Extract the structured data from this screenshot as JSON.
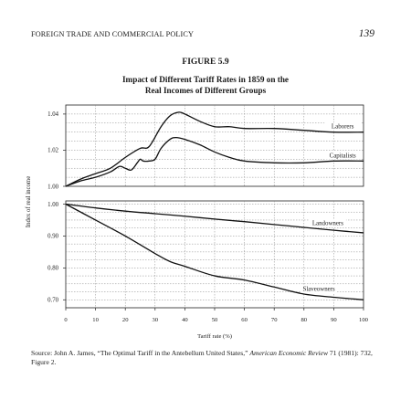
{
  "page": {
    "running_head": "FOREIGN TRADE AND COMMERCIAL POLICY",
    "page_number": "139",
    "figure_label": "FIGURE 5.9",
    "figure_title_line1": "Impact of Different Tariff Rates in 1859 on the",
    "figure_title_line2": "Real Incomes of Different Groups",
    "source_prefix": "Source: John A. James, “The Optimal Tariff in the Antebellum United States,” ",
    "source_journal": "American Economic Review",
    "source_suffix": " 71 (1981): 732, Figure 2."
  },
  "chart_data": [
    {
      "type": "line",
      "panel": "upper",
      "ylabel": "Index of real income",
      "xlim": [
        0,
        100
      ],
      "ylim": [
        1.0,
        1.045
      ],
      "yticks": [
        "1.00",
        "1.02",
        "1.04"
      ],
      "grid": true,
      "series": [
        {
          "name": "Laborers",
          "x": [
            0,
            5,
            10,
            15,
            20,
            25,
            28,
            32,
            35,
            38,
            40,
            45,
            50,
            55,
            60,
            70,
            80,
            90,
            100
          ],
          "y": [
            1.0,
            1.004,
            1.007,
            1.01,
            1.016,
            1.021,
            1.022,
            1.033,
            1.039,
            1.041,
            1.04,
            1.036,
            1.033,
            1.033,
            1.032,
            1.032,
            1.031,
            1.03,
            1.03
          ]
        },
        {
          "name": "Capitalists",
          "x": [
            0,
            5,
            10,
            15,
            18,
            20,
            22,
            24,
            25,
            26,
            28,
            30,
            32,
            35,
            37,
            40,
            45,
            50,
            55,
            60,
            70,
            80,
            90,
            100
          ],
          "y": [
            1.0,
            1.003,
            1.005,
            1.008,
            1.011,
            1.01,
            1.009,
            1.013,
            1.015,
            1.014,
            1.014,
            1.015,
            1.021,
            1.026,
            1.027,
            1.026,
            1.023,
            1.019,
            1.016,
            1.014,
            1.013,
            1.013,
            1.014,
            1.014
          ]
        }
      ]
    },
    {
      "type": "line",
      "panel": "lower",
      "xlabel": "Tariff rate (%)",
      "xlim": [
        0,
        100
      ],
      "xticks": [
        "0",
        "10",
        "20",
        "30",
        "40",
        "50",
        "60",
        "70",
        "80",
        "90",
        "100"
      ],
      "ylim": [
        0.675,
        1.01
      ],
      "yticks": [
        "0.70",
        "0.80",
        "0.90",
        "1.00"
      ],
      "grid": true,
      "series": [
        {
          "name": "Landowners",
          "x": [
            0,
            10,
            20,
            30,
            40,
            50,
            60,
            70,
            80,
            90,
            100
          ],
          "y": [
            1.0,
            0.988,
            0.978,
            0.97,
            0.962,
            0.953,
            0.945,
            0.936,
            0.927,
            0.918,
            0.91
          ]
        },
        {
          "name": "Slaveowners",
          "x": [
            0,
            10,
            20,
            30,
            35,
            40,
            50,
            60,
            70,
            80,
            90,
            100
          ],
          "y": [
            1.0,
            0.95,
            0.9,
            0.845,
            0.82,
            0.805,
            0.775,
            0.762,
            0.74,
            0.718,
            0.708,
            0.7
          ]
        }
      ]
    }
  ]
}
